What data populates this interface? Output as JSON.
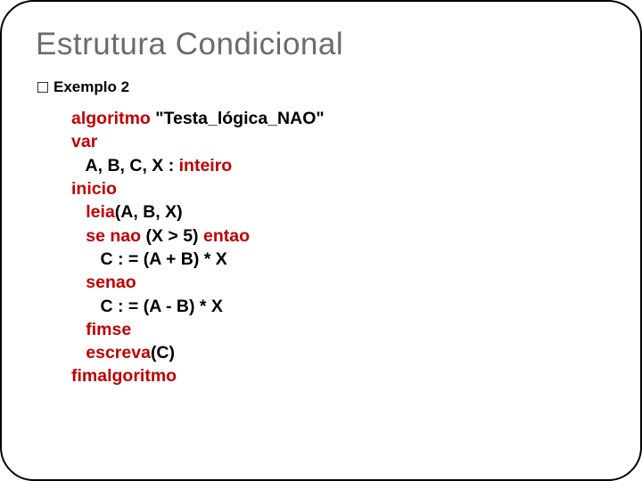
{
  "title": "Estrutura Condicional",
  "subtitle": "Exemplo 2",
  "colors": {
    "title_color": "#6b6b6b",
    "text_color": "#000000",
    "keyword_color": "#c00000",
    "background": "#ffffff",
    "border_color": "#000000"
  },
  "typography": {
    "title_fontsize": 35,
    "subtitle_fontsize": 17,
    "code_fontsize": 19.5,
    "font_family": "Arial"
  },
  "code": {
    "l1_kw": "algoritmo",
    "l1_rest": " \"Testa_lógica_NAO\"",
    "l2_kw": "var",
    "l3_rest": "   A, B, C, X : ",
    "l3_kw": "inteiro",
    "l4_kw": "inicio",
    "l5_pre": "   ",
    "l5_kw": "leia",
    "l5_rest": "(A, B, X)",
    "l6_pre": "   ",
    "l6_kw1": "se",
    "l6_mid1": " ",
    "l6_kw2": "nao",
    "l6_mid2": " (X > 5) ",
    "l6_kw3": "entao",
    "l7_rest": "      C : = (A + B) * X",
    "l8_pre": "   ",
    "l8_kw": "senao",
    "l9_rest": "      C : = (A - B) * X",
    "l10_pre": "   ",
    "l10_kw": "fimse",
    "l11_pre": "   ",
    "l11_kw": "escreva",
    "l11_rest": "(C)",
    "l12_kw": "fimalgoritmo"
  }
}
